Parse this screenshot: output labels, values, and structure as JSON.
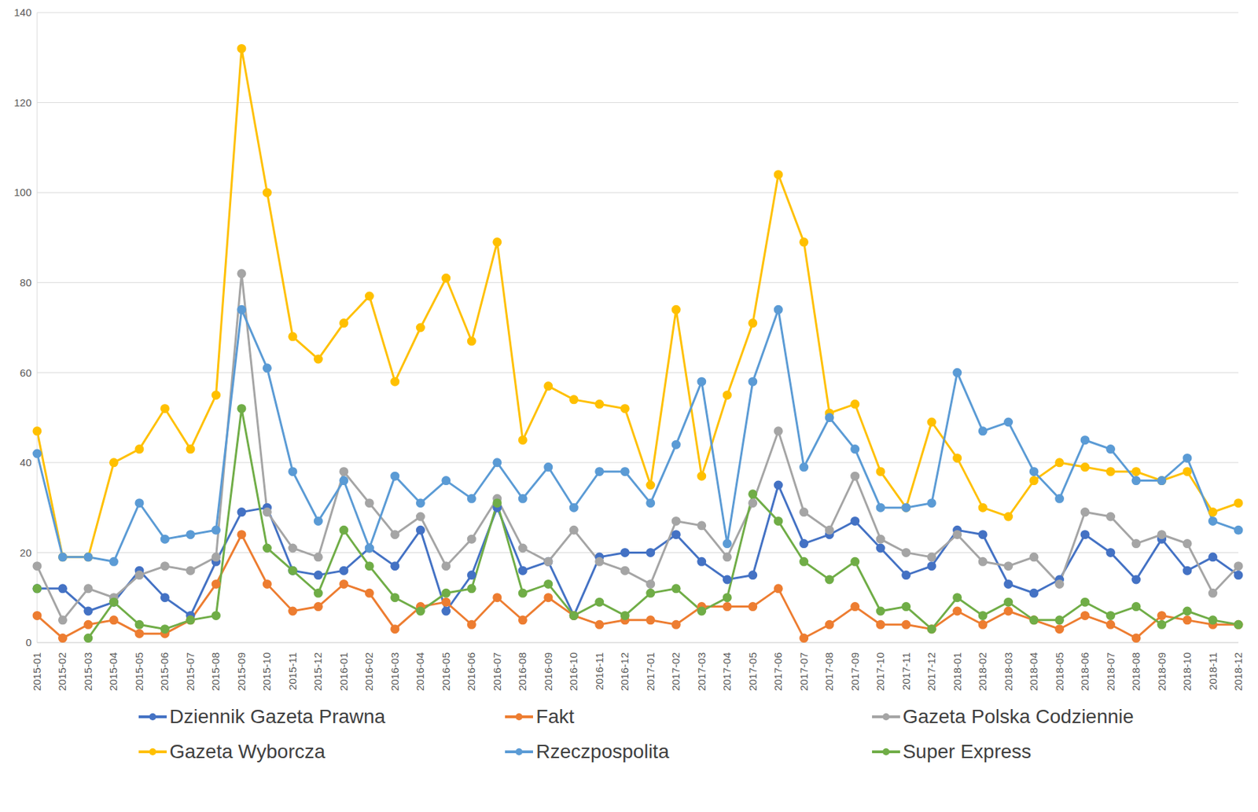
{
  "chart_data": {
    "type": "line",
    "categories": [
      "2015-01",
      "2015-02",
      "2015-03",
      "2015-04",
      "2015-05",
      "2015-06",
      "2015-07",
      "2015-08",
      "2015-09",
      "2015-10",
      "2015-11",
      "2015-12",
      "2016-01",
      "2016-02",
      "2016-03",
      "2016-04",
      "2016-05",
      "2016-06",
      "2016-07",
      "2016-08",
      "2016-09",
      "2016-10",
      "2016-11",
      "2016-12",
      "2017-01",
      "2017-02",
      "2017-03",
      "2017-04",
      "2017-05",
      "2017-06",
      "2017-07",
      "2017-08",
      "2017-09",
      "2017-10",
      "2017-11",
      "2017-12",
      "2018-01",
      "2018-02",
      "2018-03",
      "2018-04",
      "2018-05",
      "2018-06",
      "2018-07",
      "2018-08",
      "2018-09",
      "2018-10",
      "2018-11",
      "2018-12"
    ],
    "series": [
      {
        "name": "Dziennik Gazeta Prawna",
        "color": "#4472c4",
        "values": [
          12,
          12,
          7,
          9,
          16,
          10,
          6,
          18,
          29,
          30,
          16,
          15,
          16,
          21,
          17,
          25,
          7,
          15,
          30,
          16,
          18,
          6,
          19,
          20,
          20,
          24,
          18,
          14,
          15,
          35,
          22,
          24,
          27,
          21,
          15,
          17,
          25,
          24,
          13,
          11,
          14,
          24,
          20,
          14,
          23,
          16,
          19,
          15
        ]
      },
      {
        "name": "Fakt",
        "color": "#ed7d31",
        "values": [
          6,
          1,
          4,
          5,
          2,
          2,
          5,
          13,
          24,
          13,
          7,
          8,
          13,
          11,
          3,
          8,
          9,
          4,
          10,
          5,
          10,
          6,
          4,
          5,
          5,
          4,
          8,
          8,
          8,
          12,
          1,
          4,
          8,
          4,
          4,
          3,
          7,
          4,
          7,
          5,
          3,
          6,
          4,
          1,
          6,
          5,
          4,
          4
        ]
      },
      {
        "name": "Gazeta Polska Codziennie",
        "color": "#a5a5a5",
        "values": [
          17,
          5,
          12,
          10,
          15,
          17,
          16,
          19,
          82,
          29,
          21,
          19,
          38,
          31,
          24,
          28,
          17,
          23,
          32,
          21,
          18,
          25,
          18,
          16,
          13,
          27,
          26,
          19,
          31,
          47,
          29,
          25,
          37,
          23,
          20,
          19,
          24,
          18,
          17,
          19,
          13,
          29,
          28,
          22,
          24,
          22,
          11,
          17
        ]
      },
      {
        "name": "Gazeta Wyborcza",
        "color": "#ffc000",
        "values": [
          47,
          19,
          19,
          40,
          43,
          52,
          43,
          55,
          132,
          100,
          68,
          63,
          71,
          77,
          58,
          70,
          81,
          67,
          89,
          45,
          57,
          54,
          53,
          52,
          35,
          74,
          37,
          55,
          71,
          104,
          89,
          51,
          53,
          38,
          30,
          49,
          41,
          30,
          28,
          36,
          40,
          39,
          38,
          38,
          36,
          38,
          29,
          31
        ]
      },
      {
        "name": "Rzeczpospolita",
        "color": "#5b9bd5",
        "values": [
          42,
          19,
          19,
          18,
          31,
          23,
          24,
          25,
          74,
          61,
          38,
          27,
          36,
          21,
          37,
          31,
          36,
          32,
          40,
          32,
          39,
          30,
          38,
          38,
          31,
          44,
          58,
          22,
          58,
          74,
          39,
          50,
          43,
          30,
          30,
          31,
          60,
          47,
          49,
          38,
          32,
          45,
          43,
          36,
          36,
          41,
          27,
          25
        ]
      },
      {
        "name": "Super Express",
        "color": "#70ad47",
        "values": [
          12,
          null,
          1,
          9,
          4,
          3,
          5,
          6,
          52,
          21,
          16,
          11,
          25,
          17,
          10,
          7,
          11,
          12,
          31,
          11,
          13,
          6,
          9,
          6,
          11,
          12,
          7,
          10,
          33,
          27,
          18,
          14,
          18,
          7,
          8,
          3,
          10,
          6,
          9,
          5,
          5,
          9,
          6,
          8,
          4,
          7,
          5,
          4
        ]
      }
    ],
    "ylim": [
      0,
      140
    ],
    "yticks": [
      0,
      20,
      40,
      60,
      80,
      100,
      120,
      140
    ],
    "grid": true,
    "legend": "bottom",
    "marker": "circle"
  }
}
